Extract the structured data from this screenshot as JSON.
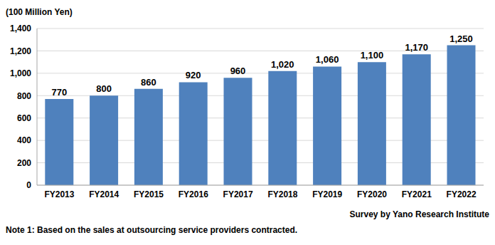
{
  "chart_data": {
    "type": "bar",
    "y_label": "(100 Million Yen)",
    "source": "Survey by Yano Research Institute",
    "note": "Note 1: Based on the sales at outsourcing service providers contracted.",
    "categories": [
      "FY2013",
      "FY2014",
      "FY2015",
      "FY2016",
      "FY2017",
      "FY2018",
      "FY2019",
      "FY2020",
      "FY2021",
      "FY2022"
    ],
    "values": [
      770,
      800,
      860,
      920,
      960,
      1020,
      1060,
      1100,
      1170,
      1250
    ],
    "value_labels": [
      "770",
      "800",
      "860",
      "920",
      "960",
      "1,020",
      "1,060",
      "1,100",
      "1,170",
      "1,250"
    ],
    "color": "#4f81bd",
    "ylim": [
      0,
      1400
    ],
    "yticks": [
      0,
      200,
      400,
      600,
      800,
      {
        "value": 1000,
        "label": "1,000"
      },
      {
        "value": 1200,
        "label": "1,200"
      },
      {
        "value": 1400,
        "label": "1,400"
      }
    ],
    "grid": true,
    "data_labels": true
  }
}
